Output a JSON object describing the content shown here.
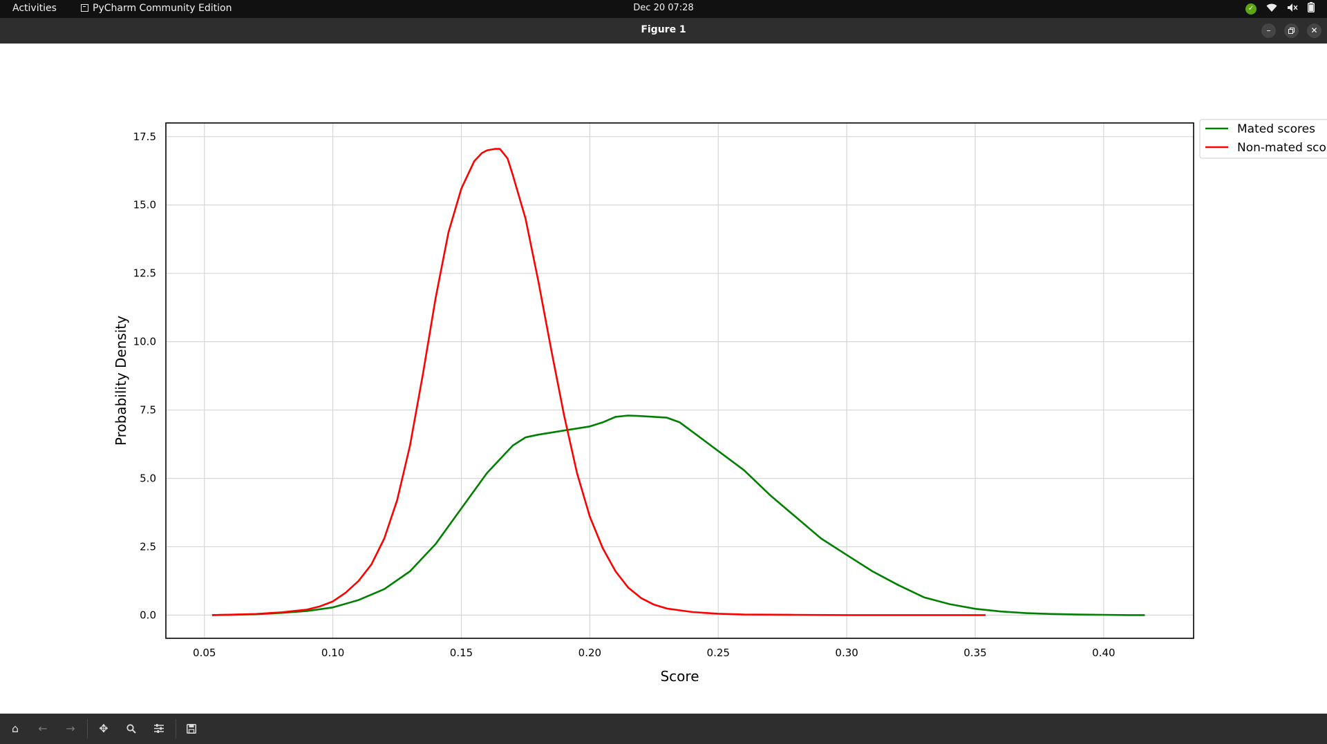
{
  "topbar": {
    "activities": "Activities",
    "app_name": "PyCharm Community Edition",
    "clock": "Dec 20  07:28",
    "icons": [
      "update-check-icon",
      "wifi-icon",
      "volume-muted-icon",
      "battery-icon"
    ]
  },
  "window": {
    "title": "Figure 1",
    "buttons": [
      "minimize-icon",
      "restore-icon",
      "close-icon"
    ]
  },
  "toolbar": {
    "buttons": [
      "home-icon",
      "back-icon",
      "forward-icon",
      "pan-icon",
      "zoom-icon",
      "configure-subplots-icon",
      "save-icon"
    ]
  },
  "chart_data": {
    "type": "line",
    "title": "",
    "xlabel": "Score",
    "ylabel": "Probability Density",
    "xlim": [
      0.035,
      0.435
    ],
    "ylim": [
      -0.85,
      18.0
    ],
    "xticks": [
      0.05,
      0.1,
      0.15,
      0.2,
      0.25,
      0.3,
      0.35,
      0.4
    ],
    "xtick_labels": [
      "0.05",
      "0.10",
      "0.15",
      "0.20",
      "0.25",
      "0.30",
      "0.35",
      "0.40"
    ],
    "yticks": [
      0.0,
      2.5,
      5.0,
      7.5,
      10.0,
      12.5,
      15.0,
      17.5
    ],
    "ytick_labels": [
      "0.0",
      "2.5",
      "5.0",
      "7.5",
      "10.0",
      "12.5",
      "15.0",
      "17.5"
    ],
    "grid": true,
    "legend": "outside-top-right",
    "series": [
      {
        "name": "Mated scores",
        "color": "#008000",
        "x": [
          0.053,
          0.07,
          0.08,
          0.09,
          0.1,
          0.11,
          0.12,
          0.13,
          0.14,
          0.15,
          0.16,
          0.17,
          0.175,
          0.18,
          0.19,
          0.2,
          0.205,
          0.21,
          0.215,
          0.22,
          0.225,
          0.23,
          0.235,
          0.24,
          0.25,
          0.26,
          0.27,
          0.28,
          0.29,
          0.3,
          0.31,
          0.32,
          0.33,
          0.34,
          0.35,
          0.36,
          0.37,
          0.38,
          0.39,
          0.4,
          0.41,
          0.416
        ],
        "y": [
          0.0,
          0.03,
          0.08,
          0.15,
          0.28,
          0.55,
          0.95,
          1.6,
          2.6,
          3.9,
          5.2,
          6.2,
          6.5,
          6.6,
          6.75,
          6.9,
          7.05,
          7.25,
          7.3,
          7.28,
          7.25,
          7.22,
          7.05,
          6.7,
          6.0,
          5.3,
          4.4,
          3.6,
          2.8,
          2.2,
          1.6,
          1.1,
          0.65,
          0.4,
          0.23,
          0.13,
          0.07,
          0.04,
          0.02,
          0.01,
          0.0,
          0.0
        ]
      },
      {
        "name": "Non-mated scores",
        "color": "#ff0000",
        "x": [
          0.053,
          0.07,
          0.08,
          0.09,
          0.095,
          0.1,
          0.105,
          0.11,
          0.115,
          0.12,
          0.125,
          0.13,
          0.135,
          0.14,
          0.145,
          0.15,
          0.155,
          0.158,
          0.16,
          0.163,
          0.165,
          0.168,
          0.17,
          0.175,
          0.18,
          0.185,
          0.19,
          0.195,
          0.2,
          0.205,
          0.21,
          0.215,
          0.22,
          0.225,
          0.23,
          0.24,
          0.25,
          0.26,
          0.28,
          0.3,
          0.32,
          0.354
        ],
        "y": [
          0.0,
          0.04,
          0.1,
          0.2,
          0.32,
          0.5,
          0.82,
          1.25,
          1.85,
          2.8,
          4.2,
          6.2,
          8.8,
          11.6,
          14.0,
          15.6,
          16.6,
          16.9,
          17.0,
          17.05,
          17.05,
          16.7,
          16.1,
          14.5,
          12.2,
          9.7,
          7.3,
          5.2,
          3.6,
          2.45,
          1.6,
          1.0,
          0.62,
          0.38,
          0.24,
          0.11,
          0.05,
          0.02,
          0.01,
          0.0,
          0.0,
          0.0
        ]
      }
    ]
  }
}
